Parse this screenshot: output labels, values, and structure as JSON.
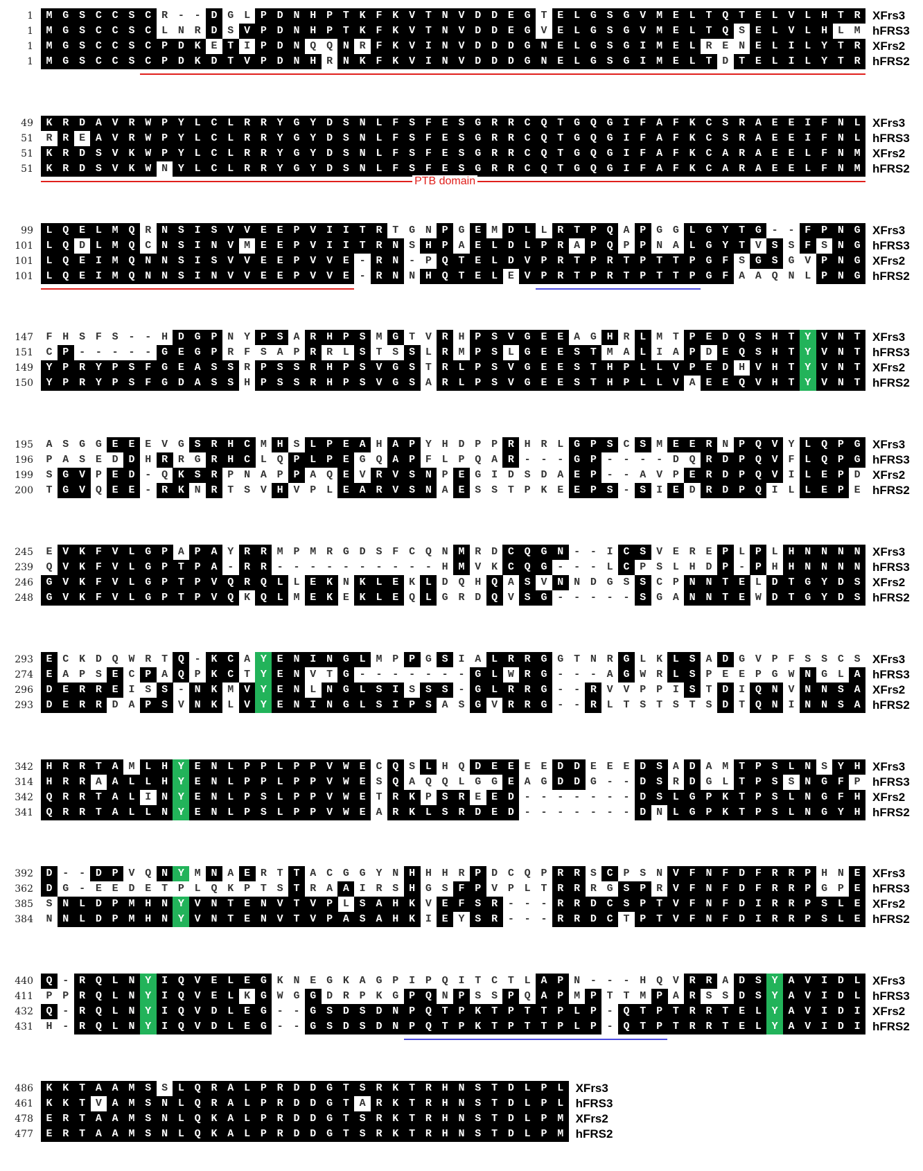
{
  "sequence_names": [
    "XFrs3",
    "hFRS3",
    "XFrs2",
    "hFRS2"
  ],
  "colors": {
    "identical": "#000000",
    "tyrosine_highlight": "#22b35a",
    "ptb_line": "#e0201c",
    "motif_line": "#4a4ae0"
  },
  "blocks": [
    {
      "starts": [
        1,
        1,
        1,
        1
      ],
      "rows": [
        "MGSCCSCR--DGLPDNHPTKFKVTNVDDEGTELGSGVMELTQTELVLHTR",
        "MGSCCSCLNRDSVPDNHPTKFKVTNVDDEGVELGSGVMELTQSELVLHLM",
        "MGSCCSCPDKETIPDNQQNRFKVINVDDDGNELGSGIMELRENELILYTR",
        "MGSCCSCPDKDTVPDNHRNKFKVINVDDDGNELGSGIMELTDTELILYTR"
      ],
      "green_cols": [],
      "annotations": [
        {
          "type": "ptb",
          "start_col": 7,
          "end_col": 50
        }
      ]
    },
    {
      "starts": [
        49,
        51,
        51,
        51
      ],
      "rows": [
        "KRDAVRWPYLCLRRYGYDSNLFSFESGRRCQTGQGIFAFKCSRAEEIFNL",
        "RREAVRWPYLCLRRYGYDSNLFSFESGRRCQTGQGIFAFKCSRAEEIFNL",
        "KRDSVKWPYLCLRRYGYDSNLFSFESGRRCQTGQGIFAFKCARAEELFNM",
        "KRDSVKWNYLCLRRYGYDSNLFSFESGRRCQTGQGIFAFKCARAEELFNM"
      ],
      "green_cols": [],
      "annotations": [
        {
          "type": "ptb",
          "start_col": 1,
          "end_col": 50,
          "label": "PTB domain",
          "label_col": 25
        }
      ]
    },
    {
      "starts": [
        99,
        101,
        101,
        101
      ],
      "rows": [
        "LQELMQRNSISVVEEPVIITRTGNPGEMDLLRTPQAPGGLGYTG--FPNG",
        "LQDLMQCNSINVMEEPVIITRNSHPAELDLPRAPQPPNALGYTVSSFSNG",
        "LQEIMQNNSISVVEEPVVE-RN-PQTELDVPRTPRTPTTPGFSGSGVPNG",
        "LQEIMQNNSINVVEEPVVE-RNNHQTELEVPRTPRTPTTPGFAAQNLPNG"
      ],
      "green_cols": [],
      "annotations": [
        {
          "type": "ptb",
          "start_col": 1,
          "end_col": 19
        },
        {
          "type": "motif",
          "start_col": 31,
          "end_col": 40
        }
      ]
    },
    {
      "starts": [
        147,
        151,
        149,
        150
      ],
      "rows": [
        "FHSFS--HDGPNYPSARHPSMGTVRHPSVGEEAGHRLMTPEDQSHTYVNT",
        "CP-----GEGPRFSAPRRLSTSSLRMPSLGEESTMALIAPDEQSHTYVNT",
        "YPRYPSFGEASSRPSSRHPSVGSTRLPSVGEESTHPLLVPEDHVHTYVNT",
        "YPRYPSFGDASSHPSSRHPSVGSARLPSVGEESTHPLLVAEEQVHTYVNT"
      ],
      "green_cols": [
        47
      ],
      "annotations": []
    },
    {
      "starts": [
        195,
        196,
        199,
        200
      ],
      "rows": [
        "ASGGEEEVGSRHCMHSLPEAHAPYHDPPRHRLGPSCSMEERNPQVYLQPG",
        "PASEDDHRRGRHCLQPLPEGQAPFLPQAR---GP----DQRDPQVFLQPG",
        "SGVPED-QKSRPNAPPAQEVRVSNPEGIDSDAEP--AVPERDPQVILEPD",
        "TGVQEE-RKNRTSVHVPLEARVSNAESSTPKEEPS-SIEDRDPQILLEPE"
      ],
      "green_cols": [],
      "annotations": []
    },
    {
      "starts": [
        245,
        239,
        246,
        248
      ],
      "rows": [
        "EVKFVLGPAPAYRRMPMRGDSFCQNMRDCQGN--ICSVEREPLPLHNNNN",
        "QVKFVLGPTPA-RR----------HMVKCQG---LCPSLHDP-PHHNNNN",
        "GVKFVLGPTPVQRQLLEKNKLEKLDQHQASVNNDGSSCPNNTELDTGYDS",
        "GVKFVLGPTPVQKQLMEKEKLEQLGRDQVSG-----SGANNTEWDTGYDS"
      ],
      "green_cols": [],
      "annotations": []
    },
    {
      "starts": [
        293,
        274,
        296,
        293
      ],
      "rows": [
        "ECKDQWRTQ-KCAYENINGLMPPGSIALRRGGTNRGLKLSADGVPFSSCS",
        "EAPSECPAQPKCTYENVTG-------GLWRG---AGWRLSPEEPGWNGLA",
        "DERREISS-NKMVYENLNGLSISSS-GLRRG--RVVPPISTDIQNVNNSA",
        "DERRDAPSVNKLVYENINGLSIPSASGVRRG--RLTSTSTSDTQNINNSA"
      ],
      "green_cols": [
        14
      ],
      "annotations": []
    },
    {
      "starts": [
        342,
        314,
        342,
        341
      ],
      "rows": [
        "HRRTAMLHYENLPPLPPVWECQSLHQDEEEEDDEEEDSADAMTPSLNSYH",
        "HRRAALLHYENLPPLPPVWESQAQQLGGEAGDDG--DSRDGLTPSSNGFP",
        "QRRTALINYENLPSLPPVWETRKPSREED-------DSLGPKTPSLNGFH",
        "QRRTALLNYENLPSLPPVWEARKLSRDED-------DNLGPKTPSLNGYH"
      ],
      "green_cols": [
        9
      ],
      "annotations": []
    },
    {
      "starts": [
        392,
        362,
        385,
        384
      ],
      "rows": [
        "D--DPVQNYMNAERTTACGGYNHHHRPDCQPRRSCPSNVFNFDFRRPHNE",
        "DG-EEDETPLQKPTSTRAAIRSHGSFPVPLTRRRGSPRVFNFDFRRPGPE",
        "SNLDPMHNYVNTENVTVPLSAHKVEFSR---RRDCSPTVFNFDIRRPSLE",
        "NNLDPMHNYVNTENVTVPASAHKIEYSR---RRDCTPTVFNFDIRRPSLE"
      ],
      "green_cols": [
        9
      ],
      "annotations": []
    },
    {
      "starts": [
        440,
        411,
        432,
        431
      ],
      "rows": [
        "Q-RQLNYIQVELEGKNEGKAGPIPQITCTLAPN---HQVRRADSYAVIDL",
        "PPRQLNYIQVELKGWGGDRPKGPQNPSSPQAPMPTTMPARSSDSYAVIDL",
        "Q-RQLNYIQVDLEG--GSDSDNPQTPKTPTTPLP-QTPTRRTELYAVIDI",
        "H-RQLNYIQVDLEG--GSDSDNPQTPKTPTTPLP-QTPTRRTELYAVIDI"
      ],
      "green_cols": [
        7,
        45
      ],
      "annotations": [
        {
          "type": "motif",
          "start_col": 23,
          "end_col": 38
        }
      ]
    },
    {
      "starts": [
        486,
        461,
        478,
        477
      ],
      "rows": [
        "KKTAAMSSLQRALPRDDGTSRKTRHNSTDLPL",
        "KKTVAMSNLQRALPRDDGTARKTRHNSTDLPL",
        "ERTAAMSNLQKALPRDDGTSRKTRHNSTDLPM",
        "ERTAAMSNLQKALPRDDGTSRKTRHNSTDLPM"
      ],
      "green_cols": [],
      "annotations": []
    }
  ]
}
